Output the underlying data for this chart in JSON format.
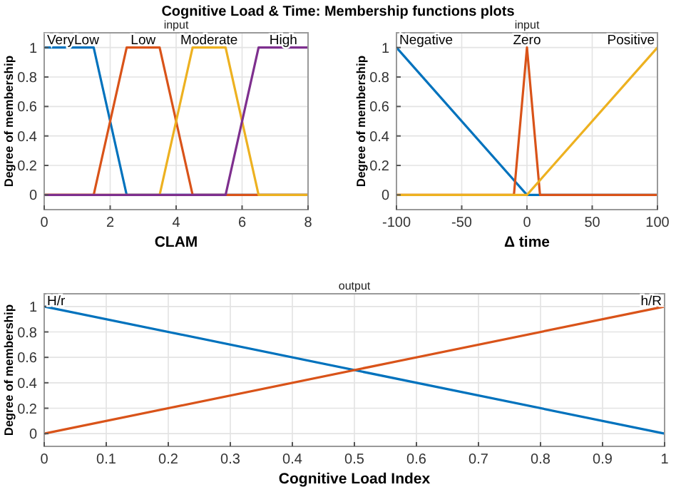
{
  "chart_data": [
    {
      "type": "line",
      "title": "Cognitive Load & Time: Membership functions plots",
      "subtitle": "input",
      "xlabel": "CLAM",
      "ylabel": "Degree of membership",
      "xlim": [
        0,
        8
      ],
      "xticks": [
        0,
        2,
        4,
        6,
        8
      ],
      "ylim": [
        -0.1,
        1.1
      ],
      "yticks": [
        0,
        0.2,
        0.4,
        0.6,
        0.8,
        1
      ],
      "grid": true,
      "series": [
        {
          "name": "VeryLow",
          "color": "#0072bd",
          "x": [
            0,
            1.5,
            2.5,
            8
          ],
          "values": [
            1,
            1,
            0,
            0
          ]
        },
        {
          "name": "Low",
          "color": "#d95319",
          "x": [
            0,
            1.5,
            2.5,
            3.5,
            4.5,
            8
          ],
          "values": [
            0,
            0,
            1,
            1,
            0,
            0
          ]
        },
        {
          "name": "Moderate",
          "color": "#edb120",
          "x": [
            0,
            3.5,
            4.5,
            5.5,
            6.5,
            8
          ],
          "values": [
            0,
            0,
            1,
            1,
            0,
            0
          ]
        },
        {
          "name": "High",
          "color": "#7e2f8e",
          "x": [
            0,
            5.5,
            6.5,
            8
          ],
          "values": [
            0,
            0,
            1,
            1
          ]
        }
      ]
    },
    {
      "type": "line",
      "subtitle": "input",
      "xlabel": "Δ time",
      "ylabel": "Degree of membership",
      "xlim": [
        -100,
        100
      ],
      "xticks": [
        -100,
        -50,
        0,
        50,
        100
      ],
      "ylim": [
        -0.1,
        1.1
      ],
      "yticks": [
        0,
        0.2,
        0.4,
        0.6,
        0.8,
        1
      ],
      "grid": true,
      "series": [
        {
          "name": "Negative",
          "color": "#0072bd",
          "x": [
            -100,
            0,
            100
          ],
          "values": [
            1,
            0,
            0
          ]
        },
        {
          "name": "Zero",
          "color": "#d95319",
          "x": [
            -100,
            -10,
            0,
            10,
            100
          ],
          "values": [
            0,
            0,
            1,
            0,
            0
          ]
        },
        {
          "name": "Positive",
          "color": "#edb120",
          "x": [
            -100,
            0,
            100
          ],
          "values": [
            0,
            0,
            1
          ]
        }
      ]
    },
    {
      "type": "line",
      "subtitle": "output",
      "xlabel": "Cognitive Load Index",
      "ylabel": "Degree of membership",
      "xlim": [
        0,
        1
      ],
      "xticks": [
        0,
        0.1,
        0.2,
        0.3,
        0.4,
        0.5,
        0.6,
        0.7,
        0.8,
        0.9,
        1
      ],
      "ylim": [
        -0.1,
        1.1
      ],
      "yticks": [
        0,
        0.2,
        0.4,
        0.6,
        0.8,
        1
      ],
      "grid": true,
      "series": [
        {
          "name": "H/r",
          "color": "#0072bd",
          "x": [
            0,
            1
          ],
          "values": [
            1,
            0
          ]
        },
        {
          "name": "h/R",
          "color": "#d95319",
          "x": [
            0,
            1
          ],
          "values": [
            0,
            1
          ]
        }
      ]
    }
  ]
}
